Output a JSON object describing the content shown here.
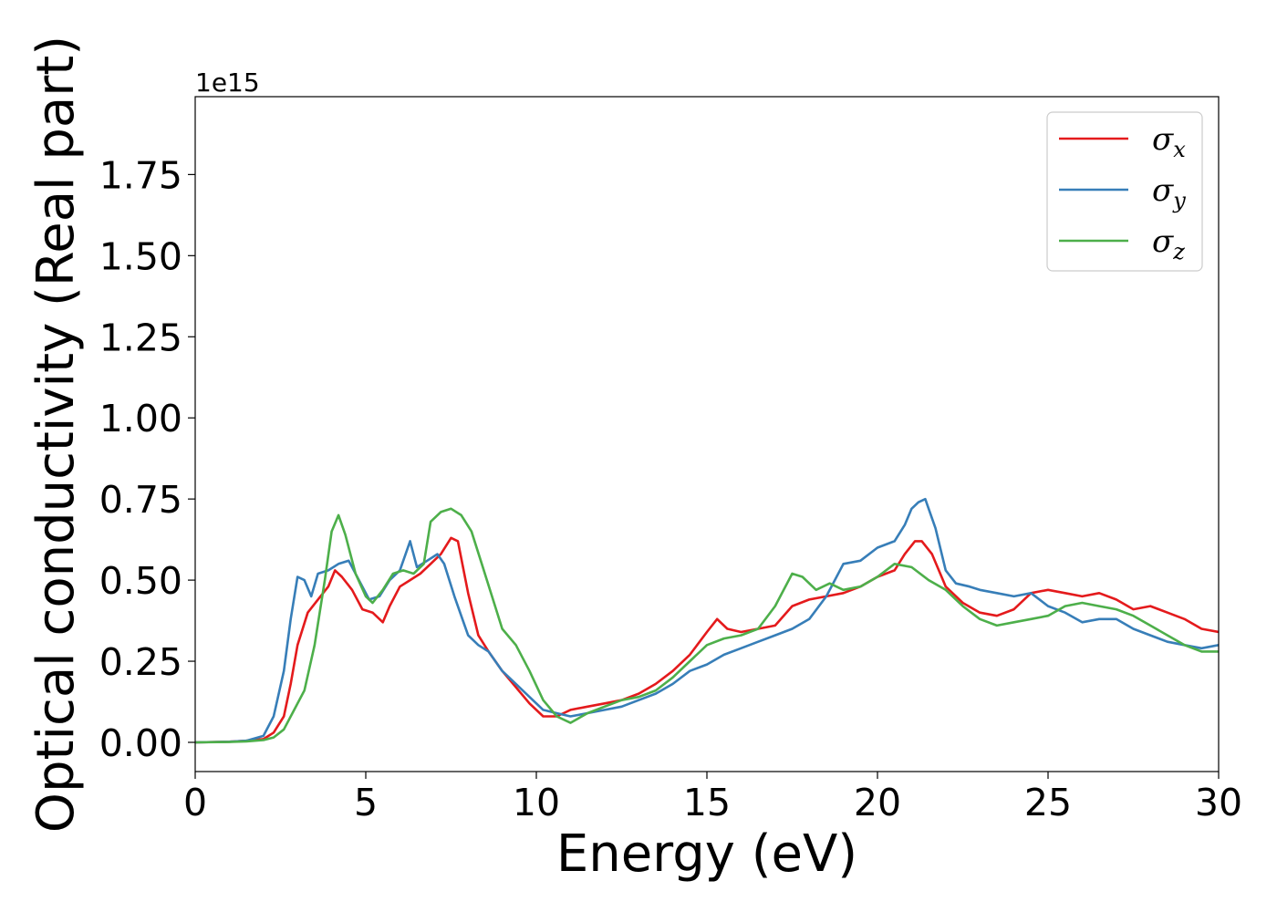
{
  "chart_data": {
    "type": "line",
    "xlabel": "Energy (eV)",
    "ylabel": "Optical conductivity (Real part)",
    "y_offset_label": "1e15",
    "xlim": [
      0,
      30
    ],
    "ylim": [
      -0.09,
      1.99
    ],
    "x_ticks": [
      0,
      5,
      10,
      15,
      20,
      25,
      30
    ],
    "y_ticks": [
      0.0,
      0.25,
      0.5,
      0.75,
      1.0,
      1.25,
      1.5,
      1.75
    ],
    "x_tick_labels": [
      "0",
      "5",
      "10",
      "15",
      "20",
      "25",
      "30"
    ],
    "y_tick_labels": [
      "0.00",
      "0.25",
      "0.50",
      "0.75",
      "1.00",
      "1.25",
      "1.50",
      "1.75"
    ],
    "grid": false,
    "legend_position": "top-right",
    "series": [
      {
        "name": "σx",
        "symbol": "σ",
        "subscript": "x",
        "color": "#e41a1c",
        "x": [
          0,
          1,
          1.5,
          2,
          2.3,
          2.6,
          2.8,
          3.0,
          3.3,
          3.6,
          3.9,
          4.1,
          4.3,
          4.6,
          4.9,
          5.2,
          5.5,
          5.7,
          6.0,
          6.3,
          6.6,
          6.9,
          7.2,
          7.5,
          7.7,
          8.0,
          8.3,
          8.6,
          9.0,
          9.4,
          9.8,
          10.2,
          10.6,
          11.0,
          11.5,
          12.0,
          12.5,
          13.0,
          13.5,
          14.0,
          14.5,
          15.0,
          15.3,
          15.6,
          16.0,
          16.5,
          17.0,
          17.5,
          18.0,
          18.5,
          19.0,
          19.5,
          20.0,
          20.5,
          20.8,
          21.1,
          21.3,
          21.6,
          22.0,
          22.5,
          23.0,
          23.5,
          24.0,
          24.5,
          25.0,
          25.5,
          26.0,
          26.5,
          27.0,
          27.5,
          28.0,
          28.5,
          29.0,
          29.5,
          30.0
        ],
        "y": [
          0,
          0.002,
          0.005,
          0.01,
          0.03,
          0.08,
          0.18,
          0.3,
          0.4,
          0.44,
          0.48,
          0.53,
          0.51,
          0.47,
          0.41,
          0.4,
          0.37,
          0.42,
          0.48,
          0.5,
          0.52,
          0.55,
          0.58,
          0.63,
          0.62,
          0.46,
          0.33,
          0.28,
          0.22,
          0.17,
          0.12,
          0.08,
          0.08,
          0.1,
          0.11,
          0.12,
          0.13,
          0.15,
          0.18,
          0.22,
          0.27,
          0.34,
          0.38,
          0.35,
          0.34,
          0.35,
          0.36,
          0.42,
          0.44,
          0.45,
          0.46,
          0.48,
          0.51,
          0.53,
          0.58,
          0.62,
          0.62,
          0.58,
          0.48,
          0.43,
          0.4,
          0.39,
          0.41,
          0.46,
          0.47,
          0.46,
          0.45,
          0.46,
          0.44,
          0.41,
          0.42,
          0.4,
          0.38,
          0.35,
          0.34
        ]
      },
      {
        "name": "σy",
        "symbol": "σ",
        "subscript": "y",
        "color": "#377eb8",
        "x": [
          0,
          1,
          1.5,
          2,
          2.3,
          2.6,
          2.8,
          3.0,
          3.2,
          3.4,
          3.6,
          3.9,
          4.2,
          4.5,
          4.8,
          5.1,
          5.4,
          5.7,
          6.0,
          6.3,
          6.5,
          6.8,
          7.1,
          7.3,
          7.6,
          8.0,
          8.3,
          8.6,
          9.0,
          9.4,
          9.8,
          10.2,
          10.6,
          11.0,
          11.5,
          12.0,
          12.5,
          13.0,
          13.5,
          14.0,
          14.5,
          15.0,
          15.5,
          16.0,
          16.5,
          17.0,
          17.5,
          18.0,
          18.5,
          19.0,
          19.5,
          20.0,
          20.5,
          20.8,
          21.0,
          21.2,
          21.4,
          21.7,
          22.0,
          22.3,
          22.7,
          23.0,
          23.5,
          24.0,
          24.5,
          25.0,
          25.5,
          26.0,
          26.5,
          27.0,
          27.5,
          28.0,
          28.5,
          29.0,
          29.5,
          30.0
        ],
        "y": [
          0,
          0.002,
          0.005,
          0.02,
          0.08,
          0.22,
          0.38,
          0.51,
          0.5,
          0.45,
          0.52,
          0.53,
          0.55,
          0.56,
          0.5,
          0.44,
          0.45,
          0.5,
          0.53,
          0.62,
          0.54,
          0.56,
          0.58,
          0.55,
          0.45,
          0.33,
          0.3,
          0.28,
          0.22,
          0.18,
          0.14,
          0.1,
          0.09,
          0.08,
          0.09,
          0.1,
          0.11,
          0.13,
          0.15,
          0.18,
          0.22,
          0.24,
          0.27,
          0.29,
          0.31,
          0.33,
          0.35,
          0.38,
          0.45,
          0.55,
          0.56,
          0.6,
          0.62,
          0.67,
          0.72,
          0.74,
          0.75,
          0.66,
          0.53,
          0.49,
          0.48,
          0.47,
          0.46,
          0.45,
          0.46,
          0.42,
          0.4,
          0.37,
          0.38,
          0.38,
          0.35,
          0.33,
          0.31,
          0.3,
          0.29,
          0.3
        ]
      },
      {
        "name": "σz",
        "symbol": "σ",
        "subscript": "z",
        "color": "#4daf4a",
        "x": [
          0,
          1,
          1.5,
          2,
          2.3,
          2.6,
          2.9,
          3.2,
          3.5,
          3.8,
          4.0,
          4.2,
          4.4,
          4.7,
          5.0,
          5.2,
          5.5,
          5.8,
          6.1,
          6.4,
          6.7,
          6.9,
          7.2,
          7.5,
          7.8,
          8.1,
          8.4,
          8.7,
          9.0,
          9.4,
          9.8,
          10.2,
          10.6,
          11.0,
          11.5,
          12.0,
          12.5,
          13.0,
          13.5,
          14.0,
          14.5,
          15.0,
          15.5,
          16.0,
          16.5,
          17.0,
          17.5,
          17.8,
          18.2,
          18.6,
          19.0,
          19.5,
          20.0,
          20.5,
          21.0,
          21.5,
          22.0,
          22.5,
          23.0,
          23.5,
          24.0,
          24.5,
          25.0,
          25.5,
          26.0,
          26.5,
          27.0,
          27.5,
          28.0,
          28.5,
          29.0,
          29.5,
          30.0
        ],
        "y": [
          0,
          0.001,
          0.003,
          0.007,
          0.015,
          0.04,
          0.1,
          0.16,
          0.3,
          0.5,
          0.65,
          0.7,
          0.64,
          0.52,
          0.45,
          0.43,
          0.47,
          0.52,
          0.53,
          0.52,
          0.55,
          0.68,
          0.71,
          0.72,
          0.7,
          0.65,
          0.55,
          0.45,
          0.35,
          0.3,
          0.22,
          0.13,
          0.08,
          0.06,
          0.09,
          0.11,
          0.13,
          0.14,
          0.16,
          0.2,
          0.25,
          0.3,
          0.32,
          0.33,
          0.35,
          0.42,
          0.52,
          0.51,
          0.47,
          0.49,
          0.47,
          0.48,
          0.51,
          0.55,
          0.54,
          0.5,
          0.47,
          0.42,
          0.38,
          0.36,
          0.37,
          0.38,
          0.39,
          0.42,
          0.43,
          0.42,
          0.41,
          0.39,
          0.36,
          0.33,
          0.3,
          0.28,
          0.28
        ]
      }
    ]
  }
}
